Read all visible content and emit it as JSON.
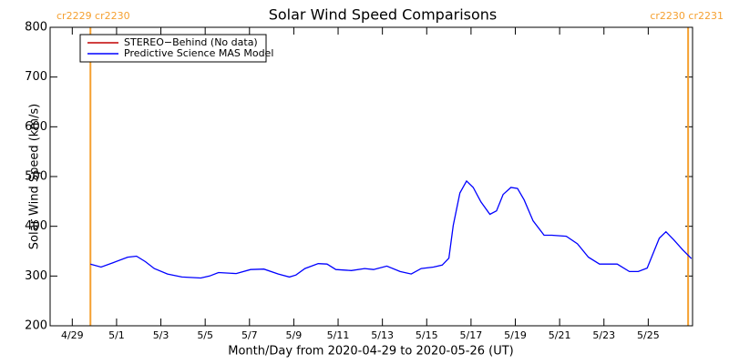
{
  "chart_data": {
    "type": "line",
    "title": "Solar Wind Speed Comparisons",
    "x_label": "Month/Day from 2020-04-29 to 2020-05-26 (UT)",
    "y_label": "Solar Wind Speed (km/s)",
    "xlim": [
      -1,
      28
    ],
    "xticks": [
      {
        "value": 0,
        "label": "4/29"
      },
      {
        "value": 2,
        "label": "5/1"
      },
      {
        "value": 4,
        "label": "5/3"
      },
      {
        "value": 6,
        "label": "5/5"
      },
      {
        "value": 8,
        "label": "5/7"
      },
      {
        "value": 10,
        "label": "5/9"
      },
      {
        "value": 12,
        "label": "5/11"
      },
      {
        "value": 14,
        "label": "5/13"
      },
      {
        "value": 16,
        "label": "5/15"
      },
      {
        "value": 18,
        "label": "5/17"
      },
      {
        "value": 20,
        "label": "5/19"
      },
      {
        "value": 22,
        "label": "5/21"
      },
      {
        "value": 24,
        "label": "5/23"
      },
      {
        "value": 26,
        "label": "5/25"
      }
    ],
    "ylim": [
      200,
      800
    ],
    "yticks": [
      200,
      300,
      400,
      500,
      600,
      700,
      800
    ],
    "legend_position": "upper-left",
    "x": [
      0.82,
      1.3,
      1.85,
      2.5,
      2.9,
      3.3,
      3.7,
      4.3,
      4.95,
      5.8,
      6.2,
      6.6,
      7.4,
      8.05,
      8.65,
      9.3,
      9.8,
      10.1,
      10.5,
      11.1,
      11.5,
      11.9,
      12.6,
      13.2,
      13.6,
      14.2,
      14.8,
      15.3,
      15.75,
      16.3,
      16.7,
      17.0,
      17.2,
      17.5,
      17.8,
      18.1,
      18.45,
      18.85,
      19.15,
      19.45,
      19.8,
      20.1,
      20.4,
      20.8,
      21.3,
      21.65,
      22.3,
      22.8,
      23.3,
      23.8,
      24.1,
      24.6,
      25.15,
      25.55,
      25.95,
      26.5,
      26.8,
      27.15,
      27.55,
      27.95
    ],
    "series": [
      {
        "name": "STEREO−Behind (No data)",
        "color": "#c00000",
        "values": [
          null,
          null,
          null,
          null,
          null,
          null,
          null,
          null,
          null,
          null,
          null,
          null,
          null,
          null,
          null,
          null,
          null,
          null,
          null,
          null,
          null,
          null,
          null,
          null,
          null,
          null,
          null,
          null,
          null,
          null,
          null,
          null,
          null,
          null,
          null,
          null,
          null,
          null,
          null,
          null,
          null,
          null,
          null,
          null,
          null,
          null,
          null,
          null,
          null,
          null,
          null,
          null,
          null,
          null,
          null,
          null,
          null,
          null,
          null,
          null
        ]
      },
      {
        "name": "Predictive Science MAS Model",
        "color": "#0000ff",
        "values": [
          324,
          318,
          327,
          338,
          340,
          329,
          315,
          304,
          298,
          296,
          300,
          307,
          305,
          313,
          314,
          304,
          298,
          302,
          315,
          325,
          324,
          313,
          311,
          315,
          313,
          320,
          309,
          304,
          315,
          318,
          322,
          336,
          402,
          467,
          491,
          478,
          449,
          424,
          431,
          464,
          478,
          476,
          453,
          411,
          382,
          382,
          380,
          365,
          338,
          324,
          324,
          324,
          309,
          309,
          316,
          376,
          389,
          373,
          353,
          335
        ]
      }
    ],
    "annotations": [
      {
        "x": 0.82,
        "label": "cr2229 cr2230",
        "color": "#f5a030"
      },
      {
        "x": 27.8,
        "label": "cr2230 cr2231",
        "color": "#f5a030"
      }
    ]
  }
}
